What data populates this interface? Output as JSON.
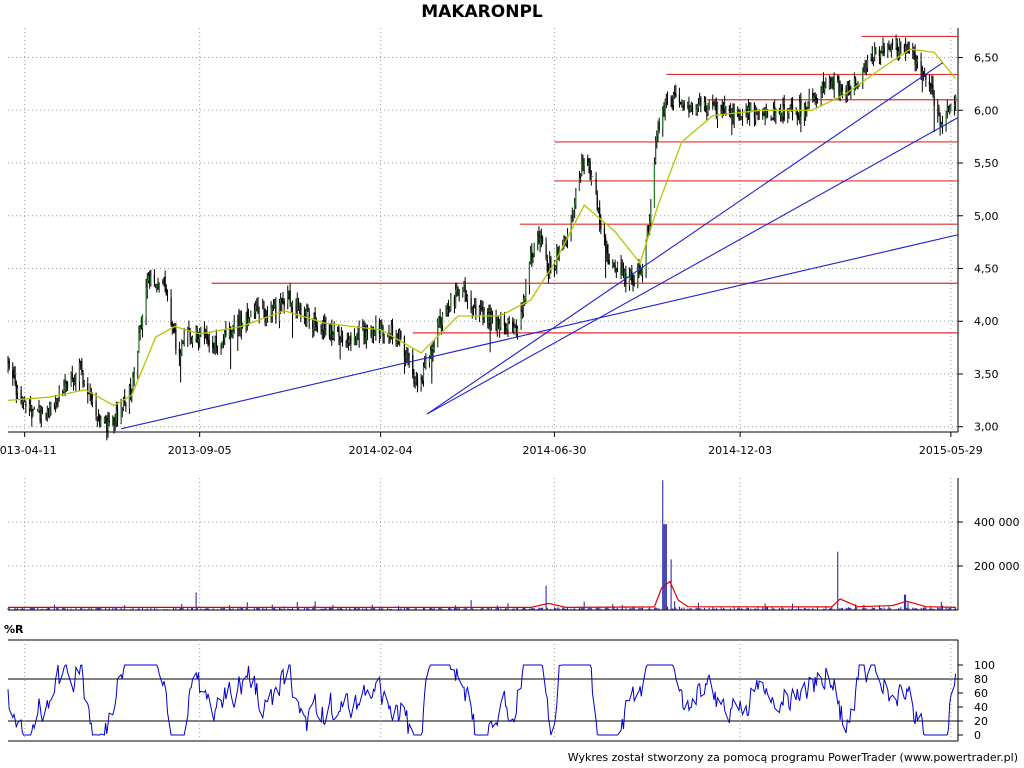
{
  "title": "MAKARONPL",
  "footer": "Wykres został stworzony za pomocą programu PowerTrader (www.powertrader.pl)",
  "colors": {
    "candle": "#000000",
    "moving_average": "#b8c400",
    "support_resistance": "#e03030",
    "trendline": "#2020d0",
    "volume": "#1a1aa0",
    "volume_average": "#e00000",
    "williams_r": "#0000d0",
    "grid": "#9a9a9a"
  },
  "chart_data": [
    {
      "type": "candlestick",
      "panel": "price",
      "title": "MAKARONPL",
      "x_tick_labels": [
        "2013-04-11",
        "2013-09-05",
        "2014-02-04",
        "2014-06-30",
        "2014-12-03",
        "2015-05-29"
      ],
      "x_tick_dates": [
        "2013-04-11",
        "2013-09-05",
        "2014-02-04",
        "2014-06-30",
        "2014-12-03",
        "2015-05-29"
      ],
      "x_range": [
        "2013-03-28",
        "2015-06-04"
      ],
      "y_tick_labels": [
        "3,00",
        "3,50",
        "4,00",
        "4,50",
        "5,00",
        "5,50",
        "6,00",
        "6,50"
      ],
      "ylim": [
        2.95,
        6.78
      ],
      "grid": true,
      "close_path": [
        [
          "2013-03-28",
          3.55
        ],
        [
          "2013-04-11",
          3.2
        ],
        [
          "2013-04-20",
          3.1
        ],
        [
          "2013-05-05",
          3.2
        ],
        [
          "2013-05-18",
          3.4
        ],
        [
          "2013-05-28",
          3.55
        ],
        [
          "2013-06-04",
          3.3
        ],
        [
          "2013-06-12",
          3.1
        ],
        [
          "2013-06-20",
          3.0
        ],
        [
          "2013-07-01",
          3.15
        ],
        [
          "2013-07-10",
          3.4
        ],
        [
          "2013-07-18",
          3.95
        ],
        [
          "2013-07-22",
          4.35
        ],
        [
          "2013-07-30",
          4.4
        ],
        [
          "2013-08-06",
          4.35
        ],
        [
          "2013-08-12",
          4.0
        ],
        [
          "2013-08-18",
          3.7
        ],
        [
          "2013-08-25",
          3.85
        ],
        [
          "2013-09-05",
          3.88
        ],
        [
          "2013-09-20",
          3.8
        ],
        [
          "2013-10-05",
          3.95
        ],
        [
          "2013-10-20",
          4.1
        ],
        [
          "2013-11-01",
          4.05
        ],
        [
          "2013-11-10",
          4.1
        ],
        [
          "2013-11-18",
          4.25
        ],
        [
          "2013-11-25",
          4.15
        ],
        [
          "2013-12-05",
          4.05
        ],
        [
          "2013-12-15",
          3.95
        ],
        [
          "2013-12-25",
          3.9
        ],
        [
          "2014-01-08",
          3.85
        ],
        [
          "2014-01-20",
          3.9
        ],
        [
          "2014-02-04",
          3.95
        ],
        [
          "2014-02-20",
          3.85
        ],
        [
          "2014-03-01",
          3.6
        ],
        [
          "2014-03-08",
          3.3
        ],
        [
          "2014-03-13",
          3.55
        ],
        [
          "2014-03-25",
          4.0
        ],
        [
          "2014-04-05",
          4.2
        ],
        [
          "2014-04-15",
          4.3
        ],
        [
          "2014-04-25",
          4.1
        ],
        [
          "2014-05-08",
          4.0
        ],
        [
          "2014-05-20",
          3.95
        ],
        [
          "2014-05-28",
          3.9
        ],
        [
          "2014-06-04",
          4.2
        ],
        [
          "2014-06-10",
          4.6
        ],
        [
          "2014-06-18",
          4.8
        ],
        [
          "2014-06-25",
          4.5
        ],
        [
          "2014-06-30",
          4.55
        ],
        [
          "2014-07-05",
          4.75
        ],
        [
          "2014-07-12",
          4.8
        ],
        [
          "2014-07-20",
          5.3
        ],
        [
          "2014-07-25",
          5.55
        ],
        [
          "2014-08-01",
          5.35
        ],
        [
          "2014-08-08",
          4.9
        ],
        [
          "2014-08-15",
          4.55
        ],
        [
          "2014-08-25",
          4.45
        ],
        [
          "2014-09-03",
          4.4
        ],
        [
          "2014-09-10",
          4.45
        ],
        [
          "2014-09-18",
          5.0
        ],
        [
          "2014-09-24",
          5.8
        ],
        [
          "2014-10-01",
          6.05
        ],
        [
          "2014-10-10",
          6.1
        ],
        [
          "2014-10-20",
          6.0
        ],
        [
          "2014-11-01",
          6.05
        ],
        [
          "2014-11-15",
          6.0
        ],
        [
          "2014-12-03",
          5.95
        ],
        [
          "2014-12-20",
          6.0
        ],
        [
          "2015-01-05",
          5.95
        ],
        [
          "2015-01-20",
          6.0
        ],
        [
          "2015-02-05",
          6.1
        ],
        [
          "2015-02-15",
          6.3
        ],
        [
          "2015-02-25",
          6.2
        ],
        [
          "2015-03-05",
          6.15
        ],
        [
          "2015-03-15",
          6.35
        ],
        [
          "2015-03-25",
          6.55
        ],
        [
          "2015-04-10",
          6.6
        ],
        [
          "2015-04-25",
          6.55
        ],
        [
          "2015-05-05",
          6.4
        ],
        [
          "2015-05-15",
          6.1
        ],
        [
          "2015-05-22",
          5.85
        ],
        [
          "2015-05-26",
          6.0
        ],
        [
          "2015-06-02",
          6.15
        ]
      ],
      "moving_average_path": [
        [
          "2013-03-28",
          3.25
        ],
        [
          "2013-05-01",
          3.28
        ],
        [
          "2013-06-01",
          3.35
        ],
        [
          "2013-06-25",
          3.2
        ],
        [
          "2013-07-10",
          3.3
        ],
        [
          "2013-07-30",
          3.85
        ],
        [
          "2013-08-15",
          3.95
        ],
        [
          "2013-09-05",
          3.88
        ],
        [
          "2013-10-10",
          3.95
        ],
        [
          "2013-11-15",
          4.1
        ],
        [
          "2013-12-20",
          3.98
        ],
        [
          "2014-02-04",
          3.92
        ],
        [
          "2014-03-10",
          3.7
        ],
        [
          "2014-04-10",
          4.05
        ],
        [
          "2014-05-15",
          4.05
        ],
        [
          "2014-06-10",
          4.2
        ],
        [
          "2014-06-30",
          4.55
        ],
        [
          "2014-07-25",
          5.1
        ],
        [
          "2014-08-20",
          4.85
        ],
        [
          "2014-09-10",
          4.55
        ],
        [
          "2014-09-25",
          5.1
        ],
        [
          "2014-10-15",
          5.7
        ],
        [
          "2014-11-10",
          5.95
        ],
        [
          "2014-12-20",
          6.0
        ],
        [
          "2015-02-01",
          6.0
        ],
        [
          "2015-03-01",
          6.15
        ],
        [
          "2015-04-01",
          6.4
        ],
        [
          "2015-04-25",
          6.58
        ],
        [
          "2015-05-15",
          6.55
        ],
        [
          "2015-06-02",
          6.3
        ]
      ],
      "horizontal_levels": [
        {
          "price": 6.7,
          "from": "2015-03-15"
        },
        {
          "price": 6.34,
          "from": "2014-10-02"
        },
        {
          "price": 6.1,
          "from": "2014-11-05"
        },
        {
          "price": 5.7,
          "from": "2014-06-30"
        },
        {
          "price": 5.33,
          "from": "2014-06-30"
        },
        {
          "price": 4.92,
          "from": "2014-06-01"
        },
        {
          "price": 4.36,
          "from": "2013-09-15"
        },
        {
          "price": 3.89,
          "from": "2014-03-03"
        }
      ],
      "trendlines": [
        {
          "from": [
            "2013-07-01",
            2.98
          ],
          "to": [
            "2015-06-04",
            4.82
          ]
        },
        {
          "from": [
            "2014-03-15",
            3.12
          ],
          "to": [
            "2015-06-04",
            5.93
          ]
        },
        {
          "from": [
            "2014-03-15",
            3.12
          ],
          "to": [
            "2015-05-22",
            6.45
          ]
        }
      ]
    },
    {
      "type": "bar",
      "panel": "volume",
      "y_tick_labels": [
        "200 000",
        "400 000"
      ],
      "ylim": [
        0,
        600000
      ],
      "spikes": [
        [
          "2014-09-28",
          590000
        ],
        [
          "2014-10-01",
          390000
        ],
        [
          "2014-10-05",
          230000
        ],
        [
          "2015-02-22",
          265000
        ],
        [
          "2014-06-22",
          110000
        ],
        [
          "2013-09-01",
          80000
        ],
        [
          "2015-04-20",
          70000
        ],
        [
          "2014-04-20",
          45000
        ]
      ],
      "volume_average_path": [
        [
          "2013-03-28",
          12000
        ],
        [
          "2014-06-10",
          12000
        ],
        [
          "2014-06-25",
          30000
        ],
        [
          "2014-07-10",
          12000
        ],
        [
          "2014-09-22",
          14000
        ],
        [
          "2014-09-28",
          100000
        ],
        [
          "2014-10-05",
          130000
        ],
        [
          "2014-10-12",
          45000
        ],
        [
          "2014-10-20",
          15000
        ],
        [
          "2015-02-18",
          14000
        ],
        [
          "2015-02-25",
          50000
        ],
        [
          "2015-03-12",
          15000
        ],
        [
          "2015-04-10",
          20000
        ],
        [
          "2015-04-22",
          40000
        ],
        [
          "2015-05-08",
          15000
        ],
        [
          "2015-06-02",
          12000
        ]
      ]
    },
    {
      "type": "line",
      "panel": "indicator",
      "indicator_name": "%R",
      "y_tick_labels": [
        "0",
        "20",
        "40",
        "60",
        "80",
        "100"
      ],
      "ylim": [
        0,
        100
      ],
      "reference_levels": [
        20,
        80
      ]
    }
  ]
}
